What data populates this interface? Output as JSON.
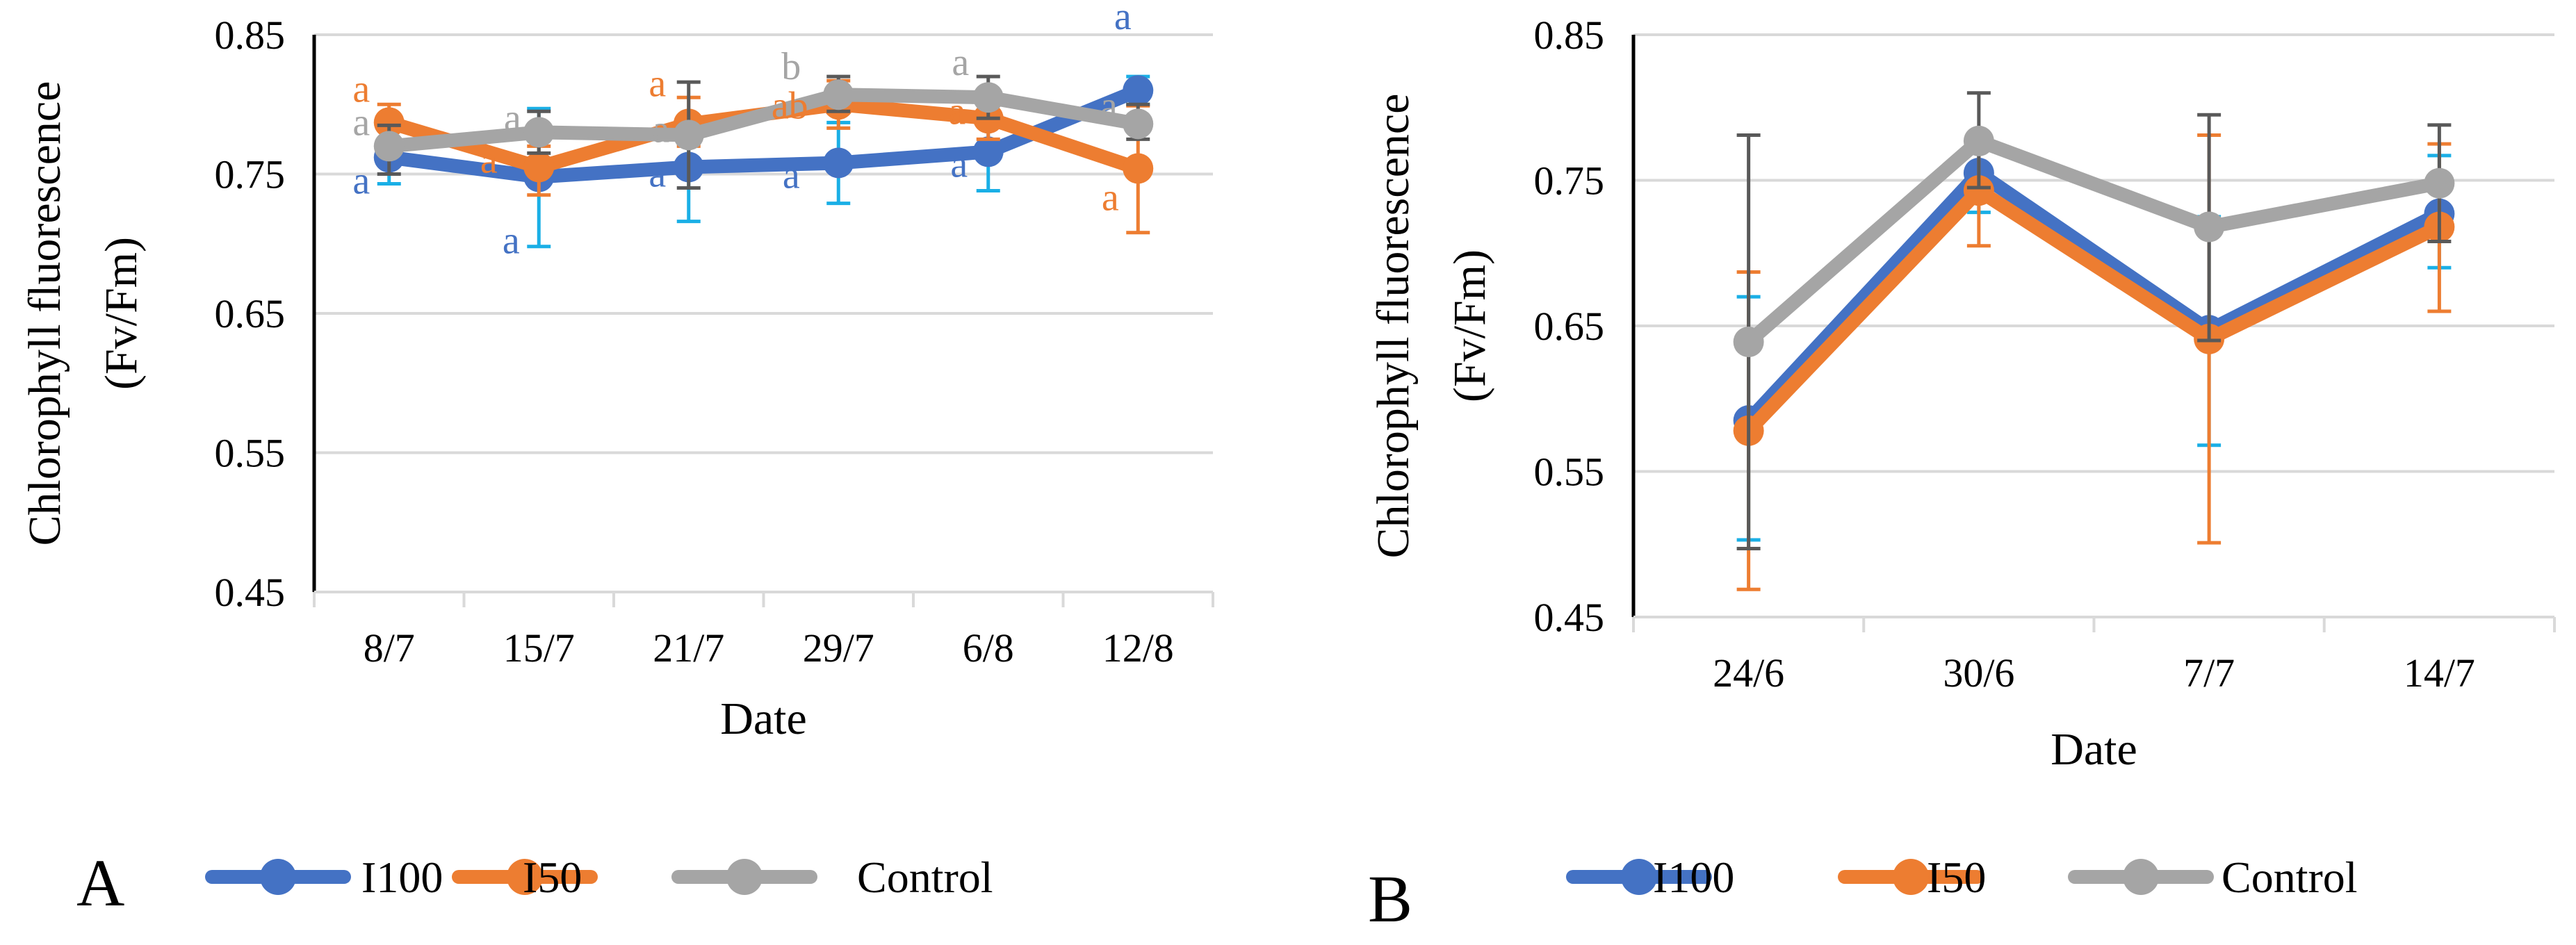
{
  "colors": {
    "I100": "#4472C4",
    "I50": "#ED7D31",
    "Control": "#A5A5A5",
    "error_I100": "#1AAFE6",
    "error_I50": "#ED7D31",
    "error_Control": "#595959",
    "grid": "#D9D9D9",
    "axis": "#000000"
  },
  "chart_data": [
    {
      "id": "A",
      "type": "line",
      "panel_label": "A",
      "ylabel_line1": "Chlorophyll fluorescence",
      "ylabel_line2": "(Fv/Fm)",
      "xlabel": "Date",
      "ylim": [
        0.45,
        0.85
      ],
      "ytick_values": [
        0.45,
        0.55,
        0.65,
        0.75,
        0.85
      ],
      "ytick_labels": [
        "0.45",
        "0.55",
        "0.65",
        "0.75",
        "0.85"
      ],
      "grid": true,
      "legend_position": "bottom",
      "categories": [
        "8/7",
        "15/7",
        "21/7",
        "29/7",
        "6/8",
        "12/8"
      ],
      "series": [
        {
          "name": "I100",
          "values": [
            0.762,
            0.748,
            0.755,
            0.758,
            0.766,
            0.81
          ],
          "error_low": [
            0.743,
            0.698,
            0.716,
            0.729,
            0.738,
            0.8
          ],
          "error_high": [
            0.775,
            0.797,
            0.79,
            0.787,
            0.793,
            0.82
          ],
          "letters": [
            "a",
            "a",
            "a",
            "a",
            "a",
            "a"
          ]
        },
        {
          "name": "I50",
          "values": [
            0.787,
            0.755,
            0.786,
            0.8,
            0.79,
            0.754
          ],
          "error_low": [
            0.775,
            0.735,
            0.77,
            0.783,
            0.775,
            0.708
          ],
          "error_high": [
            0.8,
            0.77,
            0.805,
            0.817,
            0.805,
            0.799
          ],
          "letters": [
            "a",
            "a",
            "a",
            "ab",
            "a",
            "a"
          ]
        },
        {
          "name": "Control",
          "values": [
            0.77,
            0.78,
            0.778,
            0.807,
            0.805,
            0.786
          ],
          "error_low": [
            0.75,
            0.765,
            0.74,
            0.795,
            0.79,
            0.775
          ],
          "error_high": [
            0.785,
            0.795,
            0.816,
            0.82,
            0.82,
            0.8
          ],
          "letters": [
            "a",
            "a",
            "a",
            "b",
            "a",
            "a"
          ]
        }
      ]
    },
    {
      "id": "B",
      "type": "line",
      "panel_label": "B",
      "ylabel_line1": "Chlorophyll fluorescence",
      "ylabel_line2": "(Fv/Fm)",
      "xlabel": "Date",
      "ylim": [
        0.45,
        0.85
      ],
      "ytick_values": [
        0.45,
        0.55,
        0.65,
        0.75,
        0.85
      ],
      "ytick_labels": [
        "0.45",
        "0.55",
        "0.65",
        "0.75",
        "0.85"
      ],
      "grid": true,
      "legend_position": "bottom",
      "categories": [
        "24/6",
        "30/6",
        "7/7",
        "14/7"
      ],
      "series": [
        {
          "name": "I100",
          "values": [
            0.585,
            0.755,
            0.647,
            0.727
          ],
          "error_low": [
            0.503,
            0.728,
            0.568,
            0.69
          ],
          "error_high": [
            0.67,
            0.78,
            0.725,
            0.767
          ],
          "letters": []
        },
        {
          "name": "I50",
          "values": [
            0.578,
            0.743,
            0.641,
            0.718
          ],
          "error_low": [
            0.469,
            0.705,
            0.501,
            0.66
          ],
          "error_high": [
            0.687,
            0.781,
            0.781,
            0.775
          ],
          "letters": []
        },
        {
          "name": "Control",
          "values": [
            0.639,
            0.777,
            0.718,
            0.748
          ],
          "error_low": [
            0.497,
            0.745,
            0.64,
            0.708
          ],
          "error_high": [
            0.781,
            0.81,
            0.795,
            0.788
          ],
          "letters": []
        }
      ]
    }
  ]
}
